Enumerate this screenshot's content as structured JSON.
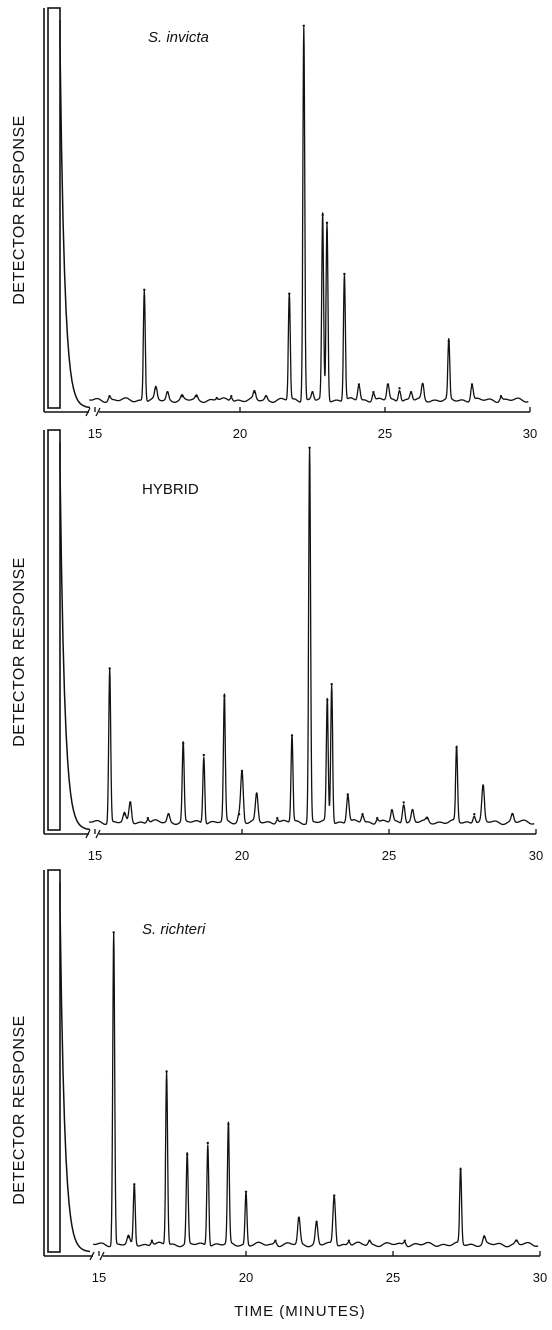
{
  "chart_data": [
    {
      "type": "line",
      "title": "S. invicta",
      "title_italic": true,
      "ylabel": "DETECTOR RESPONSE",
      "xlabel": "",
      "xlim": [
        14.5,
        30
      ],
      "x_ticks": [
        15,
        20,
        25,
        30
      ],
      "ylim": [
        0,
        100
      ],
      "axis_break_at": 15,
      "solvent_peak": {
        "x_start": 13.3,
        "x_end": 13.9,
        "height": 100
      },
      "baseline": 2,
      "peaks": [
        {
          "x": 15.5,
          "y": 3
        },
        {
          "x": 16.7,
          "y": 30
        },
        {
          "x": 17.1,
          "y": 5
        },
        {
          "x": 17.5,
          "y": 4
        },
        {
          "x": 18.0,
          "y": 3
        },
        {
          "x": 18.5,
          "y": 3
        },
        {
          "x": 19.2,
          "y": 2.5
        },
        {
          "x": 19.7,
          "y": 3
        },
        {
          "x": 20.5,
          "y": 4
        },
        {
          "x": 20.9,
          "y": 3
        },
        {
          "x": 21.7,
          "y": 29
        },
        {
          "x": 22.2,
          "y": 97
        },
        {
          "x": 22.5,
          "y": 4
        },
        {
          "x": 22.85,
          "y": 49
        },
        {
          "x": 23.0,
          "y": 47
        },
        {
          "x": 23.6,
          "y": 34
        },
        {
          "x": 24.1,
          "y": 6
        },
        {
          "x": 24.6,
          "y": 4
        },
        {
          "x": 25.1,
          "y": 6
        },
        {
          "x": 25.5,
          "y": 5
        },
        {
          "x": 25.9,
          "y": 4
        },
        {
          "x": 26.3,
          "y": 6
        },
        {
          "x": 27.2,
          "y": 17
        },
        {
          "x": 28.0,
          "y": 6
        },
        {
          "x": 29.0,
          "y": 3
        }
      ]
    },
    {
      "type": "line",
      "title": "HYBRID",
      "title_italic": false,
      "ylabel": "DETECTOR RESPONSE",
      "xlabel": "",
      "xlim": [
        14.5,
        30
      ],
      "x_ticks": [
        15,
        20,
        25,
        30
      ],
      "ylim": [
        0,
        100
      ],
      "axis_break_at": 15,
      "solvent_peak": {
        "x_start": 13.3,
        "x_end": 13.9,
        "height": 100
      },
      "baseline": 2,
      "peaks": [
        {
          "x": 15.5,
          "y": 41
        },
        {
          "x": 16.0,
          "y": 4
        },
        {
          "x": 16.2,
          "y": 7
        },
        {
          "x": 16.8,
          "y": 3
        },
        {
          "x": 17.5,
          "y": 4
        },
        {
          "x": 18.0,
          "y": 22
        },
        {
          "x": 18.7,
          "y": 19
        },
        {
          "x": 19.4,
          "y": 34
        },
        {
          "x": 19.9,
          "y": 4
        },
        {
          "x": 20.0,
          "y": 15
        },
        {
          "x": 20.5,
          "y": 9
        },
        {
          "x": 21.2,
          "y": 3
        },
        {
          "x": 21.7,
          "y": 24
        },
        {
          "x": 22.3,
          "y": 97
        },
        {
          "x": 22.9,
          "y": 33
        },
        {
          "x": 23.05,
          "y": 37
        },
        {
          "x": 23.6,
          "y": 9
        },
        {
          "x": 24.1,
          "y": 4
        },
        {
          "x": 24.6,
          "y": 3
        },
        {
          "x": 25.1,
          "y": 5
        },
        {
          "x": 25.5,
          "y": 7
        },
        {
          "x": 25.8,
          "y": 5
        },
        {
          "x": 26.3,
          "y": 3
        },
        {
          "x": 27.3,
          "y": 21
        },
        {
          "x": 27.9,
          "y": 4
        },
        {
          "x": 28.2,
          "y": 11
        },
        {
          "x": 29.2,
          "y": 4
        }
      ]
    },
    {
      "type": "line",
      "title": "S. richteri",
      "title_italic": true,
      "ylabel": "DETECTOR RESPONSE",
      "xlabel": "TIME (MINUTES)",
      "xlim": [
        14.5,
        30
      ],
      "x_ticks": [
        15,
        20,
        25,
        30
      ],
      "ylim": [
        0,
        100
      ],
      "axis_break_at": 15,
      "solvent_peak": {
        "x_start": 13.3,
        "x_end": 13.9,
        "height": 100
      },
      "baseline": 2,
      "peaks": [
        {
          "x": 15.5,
          "y": 85
        },
        {
          "x": 16.0,
          "y": 4
        },
        {
          "x": 16.2,
          "y": 18
        },
        {
          "x": 16.8,
          "y": 3
        },
        {
          "x": 17.3,
          "y": 48
        },
        {
          "x": 18.0,
          "y": 26
        },
        {
          "x": 18.7,
          "y": 29
        },
        {
          "x": 19.4,
          "y": 34
        },
        {
          "x": 20.0,
          "y": 16
        },
        {
          "x": 21.0,
          "y": 3
        },
        {
          "x": 21.8,
          "y": 9
        },
        {
          "x": 22.4,
          "y": 8
        },
        {
          "x": 23.0,
          "y": 15
        },
        {
          "x": 23.5,
          "y": 3
        },
        {
          "x": 24.2,
          "y": 3
        },
        {
          "x": 25.4,
          "y": 3
        },
        {
          "x": 27.3,
          "y": 22
        },
        {
          "x": 28.1,
          "y": 4
        },
        {
          "x": 29.2,
          "y": 3
        }
      ]
    }
  ]
}
